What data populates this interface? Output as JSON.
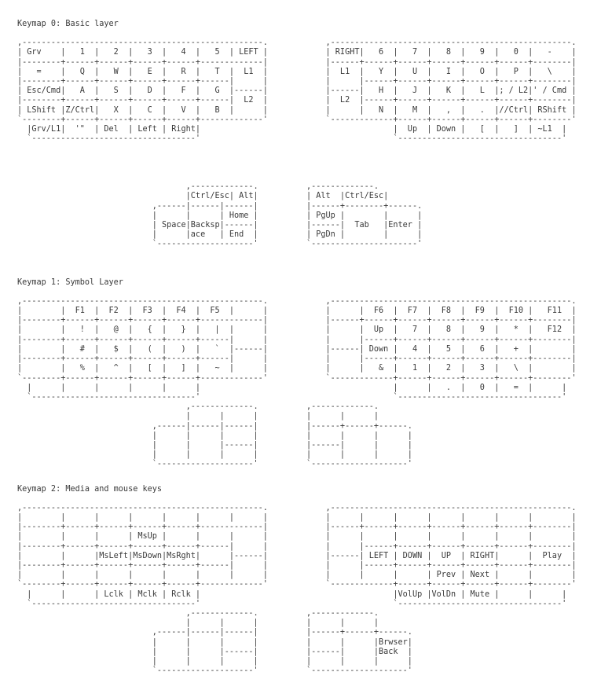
{
  "page": {
    "background_color": "#ffffff",
    "text_color": "#3a3a3a"
  },
  "keymaps": [
    {
      "title": "Keymap 0: Basic layer",
      "art": [
        ",--------------------------------------------------.            ,--------------------------------------------------.",
        "| Grv    |   1  |   2  |   3  |   4  |   5  | LEFT |            | RIGHT|   6  |   7  |   8  |   9  |   0  |   -    |",
        "|--------+------+------+------+------+-------------|            |------+------+------+------+------+------+--------|",
        "|   =    |   Q  |   W  |   E  |   R  |   T  |  L1  |            |  L1  |   Y  |   U  |   I  |   O  |   P  |   \\    |",
        "|--------+------+------+------+------+------|      |            |      |------+------+------+------+------+--------|",
        "| Esc/Cmd|   A  |   S  |   D  |   F  |   G  |------|            |------|   H  |   J  |   K  |   L  |; / L2|' / Cmd |",
        "|--------+------+------+------+------+------|  L2  |            |  L2  |------+------+------+------+------+--------|",
        "| LShift |Z/Ctrl|   X  |   C  |   V  |   B  |      |            |      |   N  |   M  |   ,  |   .  |//Ctrl| RShift |",
        "`--------+------+------+------+------+-------------'            `-------------+------+------+------+------+--------'",
        "  |Grv/L1|  '\"  | Del  | Left | Right|                                        |  Up  | Down |   [  |   ]  | ~L1  |",
        "  `----------------------------------'                                        `----------------------------------'",
        "",
        "",
        "",
        "",
        "                                   ,-------------.          ,-------------.",
        "                                   |Ctrl/Esc| Alt|          | Alt  |Ctrl/Esc|",
        "                            ,------|------|------|          |------+--------+------.",
        "                            |      |      | Home |          | PgUp |        |      |",
        "                            | Space|Backsp|------|          |------|  Tab   |Enter |",
        "                            |      |ace   | End  |          | PgDn |        |      |",
        "                            `--------------------'          `----------------------'"
      ]
    },
    {
      "title": "Keymap 1: Symbol Layer",
      "art": [
        ",--------------------------------------------------.            ,--------------------------------------------------.",
        "|        |  F1  |  F2  |  F3  |  F4  |  F5  |      |            |      |  F6  |  F7  |  F8  |  F9  |  F10 |   F11  |",
        "|--------+------+------+------+------+-------------|            |------+------+------+------+------+------+--------|",
        "|        |   !  |   @  |   {  |   }  |   |  |      |            |      |  Up  |   7  |   8  |   9  |   *  |   F12  |",
        "|--------+------+------+------+------+------|      |            |      |------+------+------+------+------+--------|",
        "|        |   #  |   $  |   (  |   )  |   `  |------|            |------| Down |   4  |   5  |   6  |   +  |        |",
        "|--------+------+------+------+------+------|      |            |      |------+------+------+------+------+--------|",
        "|        |   %  |   ^  |   [  |   ]  |   ~  |      |            |      |   &  |   1  |   2  |   3  |   \\  |        |",
        "`--------+------+------+------+------+-------------'            `-------------+------+------+------+------+--------'",
        "  |      |      |      |      |      |                                        |      |   .  |   0  |   =  |      |",
        "  `----------------------------------'                                        `----------------------------------'",
        "                                   ,-------------.          ,-------------.",
        "                                   |      |      |          |      |      |",
        "                            ,------|------|------|          |------+------+------.",
        "                            |      |      |      |          |      |      |      |",
        "                            |      |      |------|          |------|      |      |",
        "                            |      |      |      |          |      |      |      |",
        "                            `--------------------'          `--------------------'"
      ]
    },
    {
      "title": "Keymap 2: Media and mouse keys",
      "art": [
        ",--------------------------------------------------.            ,--------------------------------------------------.",
        "|        |      |      |      |      |      |      |            |      |      |      |      |      |      |        |",
        "|--------+------+------+------+------+-------------|            |------+------+------+------+------+------+--------|",
        "|        |      |      | MsUp |      |      |      |            |      |      |      |      |      |      |        |",
        "|--------+------+------+------+------+------|      |            |      |------+------+------+------+------+--------|",
        "|        |      |MsLeft|MsDown|MsRght|      |------|            |------| LEFT | DOWN |  UP  | RIGHT|      |  Play  |",
        "|--------+------+------+------+------+------|      |            |      |------+------+------+------+------+--------|",
        "|        |      |      |      |      |      |      |            |      |      |      | Prev | Next |      |        |",
        "`--------+------+------+------+------+-------------'            `-------------+------+------+------+------+--------'",
        "  |      |      | Lclk | Mclk | Rclk |                                        |VolUp |VolDn | Mute |      |      |",
        "  `----------------------------------'                                        `----------------------------------'",
        "                                   ,-------------.          ,-------------.",
        "                                   |      |      |          |      |      |",
        "                            ,------|------|------|          |------+------+------.",
        "                            |      |      |      |          |      |      |Brwser|",
        "                            |      |      |------|          |------|      |Back  |",
        "                            |      |      |      |          |      |      |      |",
        "                            `--------------------'          `--------------------'"
      ]
    }
  ]
}
